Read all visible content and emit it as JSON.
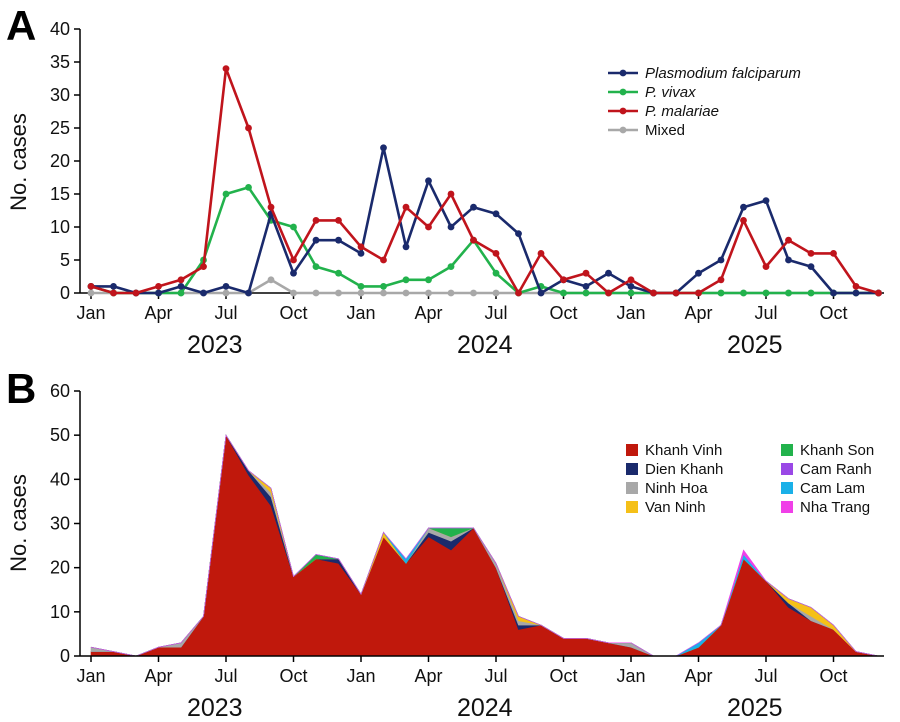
{
  "months": [
    "Jan 2023",
    "Feb 2023",
    "Mar 2023",
    "Apr 2023",
    "May 2023",
    "Jun 2023",
    "Jul 2023",
    "Aug 2023",
    "Sep 2023",
    "Oct 2023",
    "Nov 2023",
    "Dec 2023",
    "Jan 2024",
    "Feb 2024",
    "Mar 2024",
    "Apr 2024",
    "May 2024",
    "Jun 2024",
    "Jul 2024",
    "Aug 2024",
    "Sep 2024",
    "Oct 2024",
    "Nov 2024",
    "Dec 2024",
    "Jan 2025",
    "Feb 2025",
    "Mar 2025",
    "Apr 2025",
    "May 2025",
    "Jun 2025",
    "Jul 2025",
    "Aug 2025",
    "Sep 2025",
    "Oct 2025",
    "Nov 2025",
    "Dec 2025"
  ],
  "x_ticks": [
    {
      "index": 0,
      "label": "Jan"
    },
    {
      "index": 3,
      "label": "Apr"
    },
    {
      "index": 6,
      "label": "Jul"
    },
    {
      "index": 9,
      "label": "Oct"
    },
    {
      "index": 12,
      "label": "Jan"
    },
    {
      "index": 15,
      "label": "Apr"
    },
    {
      "index": 18,
      "label": "Jul"
    },
    {
      "index": 21,
      "label": "Oct"
    },
    {
      "index": 24,
      "label": "Jan"
    },
    {
      "index": 27,
      "label": "Apr"
    },
    {
      "index": 30,
      "label": "Jul"
    },
    {
      "index": 33,
      "label": "Oct"
    }
  ],
  "years": [
    {
      "center_index": 5,
      "label": "2023"
    },
    {
      "center_index": 17,
      "label": "2024"
    },
    {
      "center_index": 29,
      "label": "2025"
    }
  ],
  "chart_data": [
    {
      "panel": "A",
      "type": "line",
      "ylabel": "No. cases",
      "ylim": [
        0,
        40
      ],
      "yticks": [
        0,
        5,
        10,
        15,
        20,
        25,
        30,
        35,
        40
      ],
      "legend_position": "top-right",
      "series": [
        {
          "name": "Plasmodium falciparum",
          "italic": true,
          "color": "#1a2a6c",
          "values": [
            1,
            1,
            0,
            0,
            1,
            0,
            1,
            0,
            12,
            3,
            8,
            8,
            6,
            22,
            7,
            17,
            10,
            13,
            12,
            9,
            0,
            2,
            1,
            3,
            1,
            0,
            0,
            3,
            5,
            13,
            14,
            5,
            4,
            0,
            0,
            0
          ]
        },
        {
          "name": "P. vivax",
          "italic": true,
          "color": "#22b24c",
          "values": [
            1,
            0,
            0,
            0,
            0,
            5,
            15,
            16,
            11,
            10,
            4,
            3,
            1,
            1,
            2,
            2,
            4,
            8,
            3,
            0,
            1,
            0,
            0,
            0,
            0,
            0,
            0,
            0,
            0,
            0,
            0,
            0,
            0,
            0,
            0,
            0
          ]
        },
        {
          "name": "P. malariae",
          "italic": true,
          "color": "#c0141c",
          "values": [
            1,
            0,
            0,
            1,
            2,
            4,
            34,
            25,
            13,
            5,
            11,
            11,
            7,
            5,
            13,
            10,
            15,
            8,
            6,
            0,
            6,
            2,
            3,
            0,
            2,
            0,
            0,
            0,
            2,
            11,
            4,
            8,
            6,
            6,
            1,
            0
          ]
        },
        {
          "name": "Mixed",
          "italic": false,
          "color": "#a8a8a8",
          "values": [
            0,
            0,
            0,
            0,
            0,
            0,
            0,
            0,
            2,
            0,
            0,
            0,
            0,
            0,
            0,
            0,
            0,
            0,
            0,
            0,
            0,
            0,
            0,
            0,
            0,
            0,
            0,
            0,
            0,
            0,
            0,
            0,
            0,
            0,
            0,
            0
          ]
        }
      ]
    },
    {
      "panel": "B",
      "type": "area",
      "stacked": true,
      "ylabel": "No. cases",
      "ylim": [
        0,
        60
      ],
      "yticks": [
        0,
        10,
        20,
        30,
        40,
        50,
        60
      ],
      "legend_position": "right",
      "series": [
        {
          "name": "Khanh Vinh",
          "color": "#c0180c",
          "values": [
            1,
            1,
            0,
            2,
            2,
            9,
            50,
            41,
            34,
            18,
            22,
            21,
            14,
            27,
            21,
            27,
            24,
            29,
            20,
            6,
            7,
            4,
            4,
            3,
            2,
            0,
            0,
            2,
            7,
            22,
            17,
            11,
            8,
            6,
            1,
            0
          ]
        },
        {
          "name": "Dien Khanh",
          "color": "#1a2a6c",
          "values": [
            0,
            0,
            0,
            0,
            0,
            0,
            0,
            1,
            2,
            0,
            0,
            1,
            0,
            0,
            0,
            1,
            2,
            0,
            0,
            1,
            0,
            0,
            0,
            0,
            0,
            0,
            0,
            0,
            0,
            0,
            0,
            1,
            0,
            0,
            0,
            0
          ]
        },
        {
          "name": "Ninh Hoa",
          "color": "#a8a8a8",
          "values": [
            1,
            0,
            0,
            0,
            1,
            0,
            0,
            0,
            1,
            0,
            0,
            0,
            0,
            0,
            0,
            1,
            1,
            0,
            1,
            1,
            0,
            0,
            0,
            0,
            1,
            0,
            0,
            0,
            0,
            0,
            0,
            0,
            1,
            0,
            0,
            0
          ]
        },
        {
          "name": "Van Ninh",
          "color": "#f5c018",
          "values": [
            0,
            0,
            0,
            0,
            0,
            0,
            0,
            0,
            1,
            0,
            0,
            0,
            0,
            1,
            0,
            0,
            0,
            0,
            0,
            1,
            0,
            0,
            0,
            0,
            0,
            0,
            0,
            0,
            0,
            0,
            0,
            1,
            2,
            1,
            0,
            0
          ]
        },
        {
          "name": "Khanh Son",
          "color": "#22b24c",
          "values": [
            0,
            0,
            0,
            0,
            0,
            0,
            0,
            0,
            0,
            0,
            1,
            0,
            0,
            0,
            0,
            0,
            2,
            0,
            0,
            0,
            0,
            0,
            0,
            0,
            0,
            0,
            0,
            0,
            0,
            0,
            0,
            0,
            0,
            0,
            0,
            0
          ]
        },
        {
          "name": "Cam Ranh",
          "color": "#9a48e6",
          "values": [
            0,
            0,
            0,
            0,
            0,
            0,
            0,
            0,
            0,
            0,
            0,
            0,
            0,
            0,
            0,
            0,
            0,
            0,
            0,
            0,
            0,
            0,
            0,
            0,
            0,
            0,
            0,
            0,
            0,
            0,
            0,
            0,
            0,
            0,
            0,
            0
          ]
        },
        {
          "name": "Cam Lam",
          "color": "#1ab0e8",
          "values": [
            0,
            0,
            0,
            0,
            0,
            0,
            0,
            0,
            0,
            0,
            0,
            0,
            0,
            0,
            1,
            0,
            0,
            0,
            0,
            0,
            0,
            0,
            0,
            0,
            0,
            0,
            0,
            1,
            0,
            1,
            0,
            0,
            0,
            0,
            0,
            0
          ]
        },
        {
          "name": "Nha Trang",
          "color": "#f040e8",
          "values": [
            0,
            0,
            0,
            0,
            0,
            0,
            0,
            0,
            0,
            0,
            0,
            0,
            0,
            0,
            0,
            0,
            0,
            0,
            0,
            0,
            0,
            0,
            0,
            0,
            0,
            0,
            0,
            0,
            0,
            1,
            0,
            0,
            0,
            0,
            0,
            0
          ]
        }
      ]
    }
  ]
}
